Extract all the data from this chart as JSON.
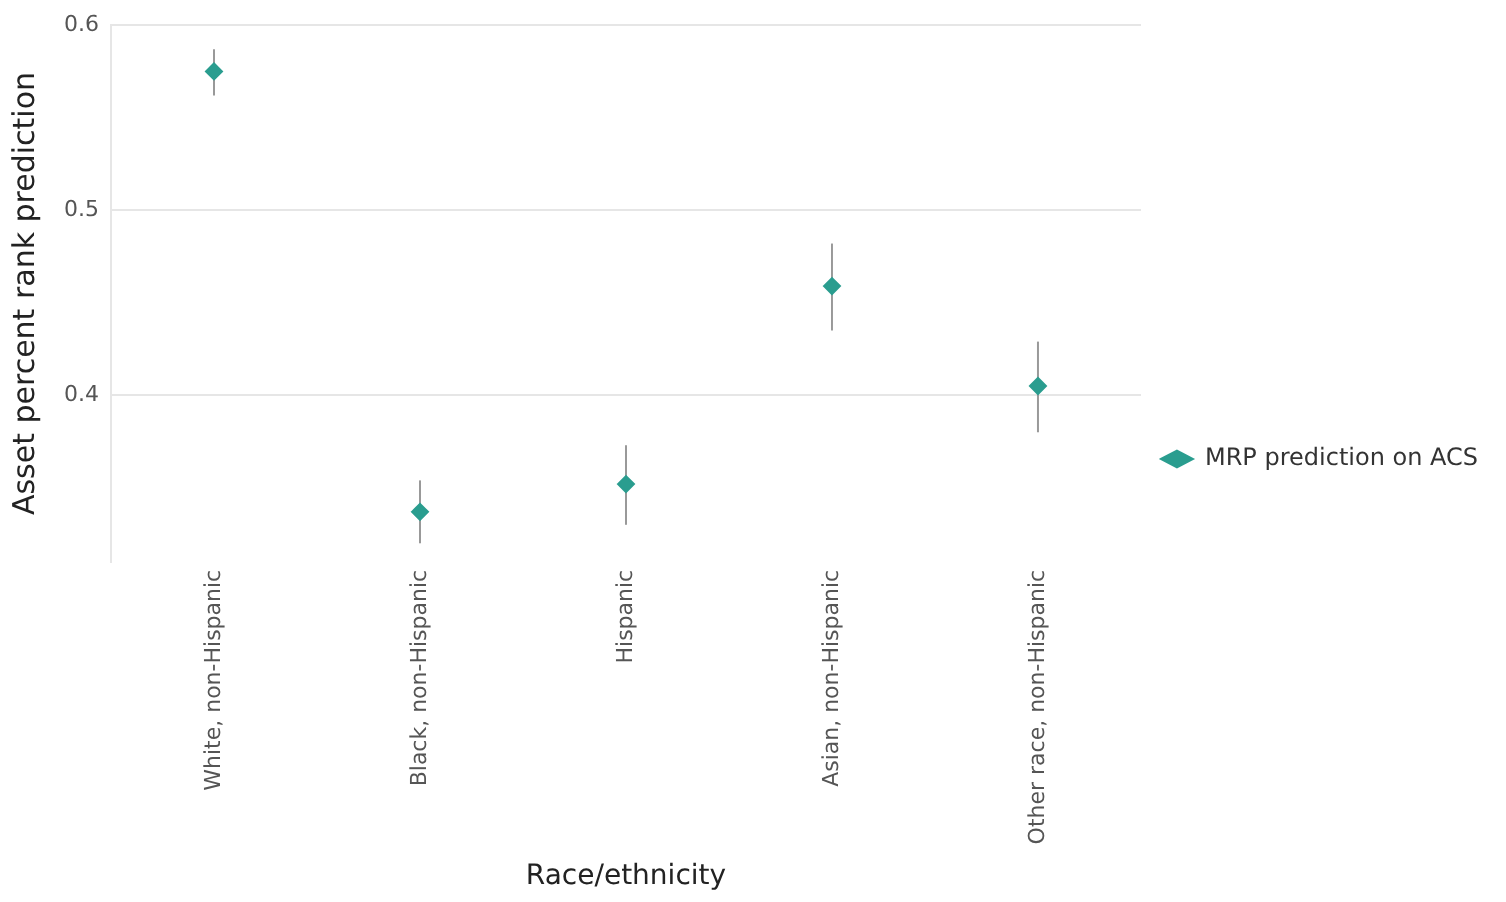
{
  "chart_data": {
    "type": "scatter",
    "xlabel": "Race/ethnicity",
    "ylabel": "Asset percent rank prediction",
    "categories": [
      "White, non-Hispanic",
      "Black, non-Hispanic",
      "Hispanic",
      "Asian, non-Hispanic",
      "Other race, non-Hispanic"
    ],
    "series": [
      {
        "name": "MRP prediction on ACS",
        "color": "#2a9d8f",
        "values": [
          0.575,
          0.337,
          0.352,
          0.459,
          0.405
        ],
        "errors": [
          [
            0.562,
            0.587
          ],
          [
            0.32,
            0.354
          ],
          [
            0.33,
            0.373
          ],
          [
            0.435,
            0.482
          ],
          [
            0.38,
            0.429
          ]
        ]
      }
    ],
    "ylim": [
      0.31,
      0.6
    ],
    "yticks": [
      0.4,
      0.5,
      0.6
    ],
    "grid": "y",
    "legend": "right",
    "marker": "diamond"
  }
}
